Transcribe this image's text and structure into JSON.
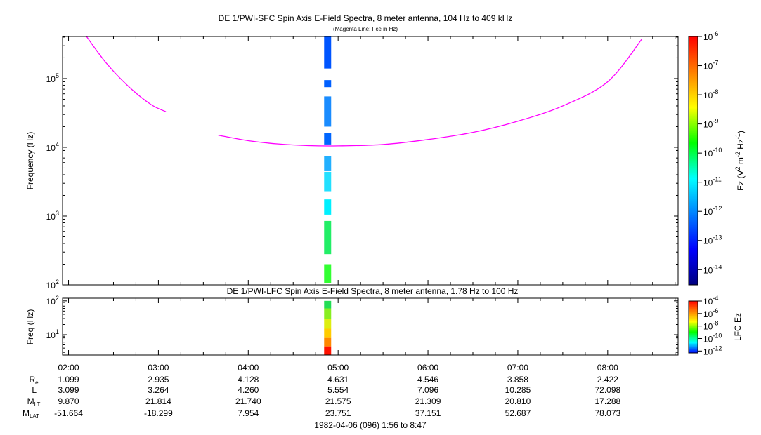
{
  "chart_data": [
    {
      "type": "heatmap",
      "title": "DE 1/PWI-SFC  Spin Axis E-Field Spectra, 8 meter antenna, 104 Hz to 409 kHz",
      "subtitle": "(Magenta Line: Fce in Hz)",
      "ylabel": "Frequency (Hz)",
      "yscale": "log",
      "ylim": [
        100,
        409000
      ],
      "ytick_labels": [
        {
          "base": "10",
          "exp": "2"
        },
        {
          "base": "10",
          "exp": "3"
        },
        {
          "base": "10",
          "exp": "4"
        },
        {
          "base": "10",
          "exp": "5"
        }
      ],
      "xlim": [
        "01:56",
        "08:47"
      ],
      "colorbar": {
        "label_text": "Ez (V",
        "label_parts": [
          {
            "t": "Ez (V",
            "sup": false
          },
          {
            "t": "2",
            "sup": true
          },
          {
            "t": " m",
            "sup": false
          },
          {
            "t": "-2",
            "sup": true
          },
          {
            "t": " Hz",
            "sup": false
          },
          {
            "t": "-1",
            "sup": true
          },
          {
            "t": ")",
            "sup": false
          }
        ],
        "scale": "log",
        "range": [
          3e-15,
          1e-06
        ],
        "tick_labels": [
          {
            "base": "10",
            "exp": "-6"
          },
          {
            "base": "10",
            "exp": "-7"
          },
          {
            "base": "10",
            "exp": "-8"
          },
          {
            "base": "10",
            "exp": "-9"
          },
          {
            "base": "10",
            "exp": "-10"
          },
          {
            "base": "10",
            "exp": "-11"
          },
          {
            "base": "10",
            "exp": "-12"
          },
          {
            "base": "10",
            "exp": "-13"
          },
          {
            "base": "10",
            "exp": "-14"
          }
        ],
        "colormap": [
          "#00007f",
          "#0000ff",
          "#007fff",
          "#00ffff",
          "#00ff00",
          "#ffff00",
          "#ff7f00",
          "#ff0000"
        ]
      },
      "spectra_time": "04:53",
      "spectra_segments": [
        {
          "fmin": 140000,
          "fmax": 409000,
          "color": "#0055ff"
        },
        {
          "fmin": 75000,
          "fmax": 95000,
          "color": "#0060ff"
        },
        {
          "fmin": 20000,
          "fmax": 55000,
          "color": "#1a8cff"
        },
        {
          "fmin": 11000,
          "fmax": 16000,
          "color": "#0066ff"
        },
        {
          "fmin": 4500,
          "fmax": 7500,
          "color": "#22b0ff"
        },
        {
          "fmin": 2300,
          "fmax": 4400,
          "color": "#22e0ff"
        },
        {
          "fmin": 1050,
          "fmax": 1750,
          "color": "#00f0ff"
        },
        {
          "fmin": 280,
          "fmax": 850,
          "color": "#22ee66"
        },
        {
          "fmin": 105,
          "fmax": 200,
          "color": "#33ff33"
        }
      ],
      "series": [
        {
          "name": "Fce",
          "color": "#ff00ff",
          "segments": [
            {
              "t": [
                "02:12",
                "02:25",
                "02:40",
                "02:55",
                "03:05"
              ],
              "f": [
                409000,
                170000,
                77000,
                42000,
                33000
              ]
            },
            {
              "t": [
                "03:40",
                "04:00",
                "04:20",
                "04:40",
                "05:00",
                "05:30",
                "06:00",
                "06:30",
                "07:00",
                "07:30",
                "08:00",
                "08:23"
              ],
              "f": [
                15000,
                12500,
                11200,
                10600,
                10500,
                11000,
                13000,
                16500,
                24000,
                40000,
                90000,
                380000
              ]
            }
          ]
        }
      ]
    },
    {
      "type": "heatmap",
      "title": "DE 1/PWI-LFC  Spin Axis E-Field Spectra, 8 meter antenna, 1.78 Hz to 100 Hz",
      "ylabel": "Freq (Hz)",
      "yscale": "log",
      "ylim": [
        2.5,
        120
      ],
      "ytick_labels": [
        {
          "base": "10",
          "exp": "1"
        },
        {
          "base": "10",
          "exp": "2"
        }
      ],
      "colorbar": {
        "label": "LFC Ez",
        "scale": "log",
        "range": [
          5e-13,
          0.0001
        ],
        "tick_labels": [
          {
            "base": "10",
            "exp": "-4"
          },
          {
            "base": "10",
            "exp": "-6"
          },
          {
            "base": "10",
            "exp": "-8"
          },
          {
            "base": "10",
            "exp": "-10"
          },
          {
            "base": "10",
            "exp": "-12"
          }
        ],
        "colormap": [
          "#0000ff",
          "#00ffff",
          "#00ff00",
          "#ffff00",
          "#ff7f00",
          "#ff0000"
        ]
      },
      "spectra_time": "04:53",
      "spectra_segments": [
        {
          "fmin": 60,
          "fmax": 100,
          "color": "#22dd55"
        },
        {
          "fmin": 30,
          "fmax": 60,
          "color": "#88ee22"
        },
        {
          "fmin": 15,
          "fmax": 30,
          "color": "#ddee11"
        },
        {
          "fmin": 8,
          "fmax": 15,
          "color": "#ffcc00"
        },
        {
          "fmin": 4.5,
          "fmax": 8,
          "color": "#ff8800"
        },
        {
          "fmin": 2.5,
          "fmax": 4.5,
          "color": "#ff1100"
        }
      ]
    }
  ],
  "time_axis": {
    "ticks": [
      "02:00",
      "03:00",
      "04:00",
      "05:00",
      "06:00",
      "07:00",
      "08:00"
    ],
    "minor_every_minutes": 15
  },
  "ephemeris": {
    "rows": [
      {
        "label": "R",
        "sub": "e",
        "values": [
          "1.099",
          "2.935",
          "4.128",
          "4.631",
          "4.546",
          "3.858",
          "2.422"
        ]
      },
      {
        "label": "L",
        "sub": "",
        "values": [
          "3.099",
          "3.264",
          "4.260",
          "5.554",
          "7.096",
          "10.285",
          "72.098"
        ]
      },
      {
        "label": "M",
        "sub": "LT",
        "values": [
          "9.870",
          "21.814",
          "21.740",
          "21.575",
          "21.309",
          "20.810",
          "17.288"
        ]
      },
      {
        "label": "M",
        "sub": "LAT",
        "values": [
          "-51.664",
          "-18.299",
          "7.954",
          "23.751",
          "37.151",
          "52.687",
          "78.073"
        ]
      }
    ]
  },
  "footer": "1982-04-06 (096) 1:56 to 8:47"
}
